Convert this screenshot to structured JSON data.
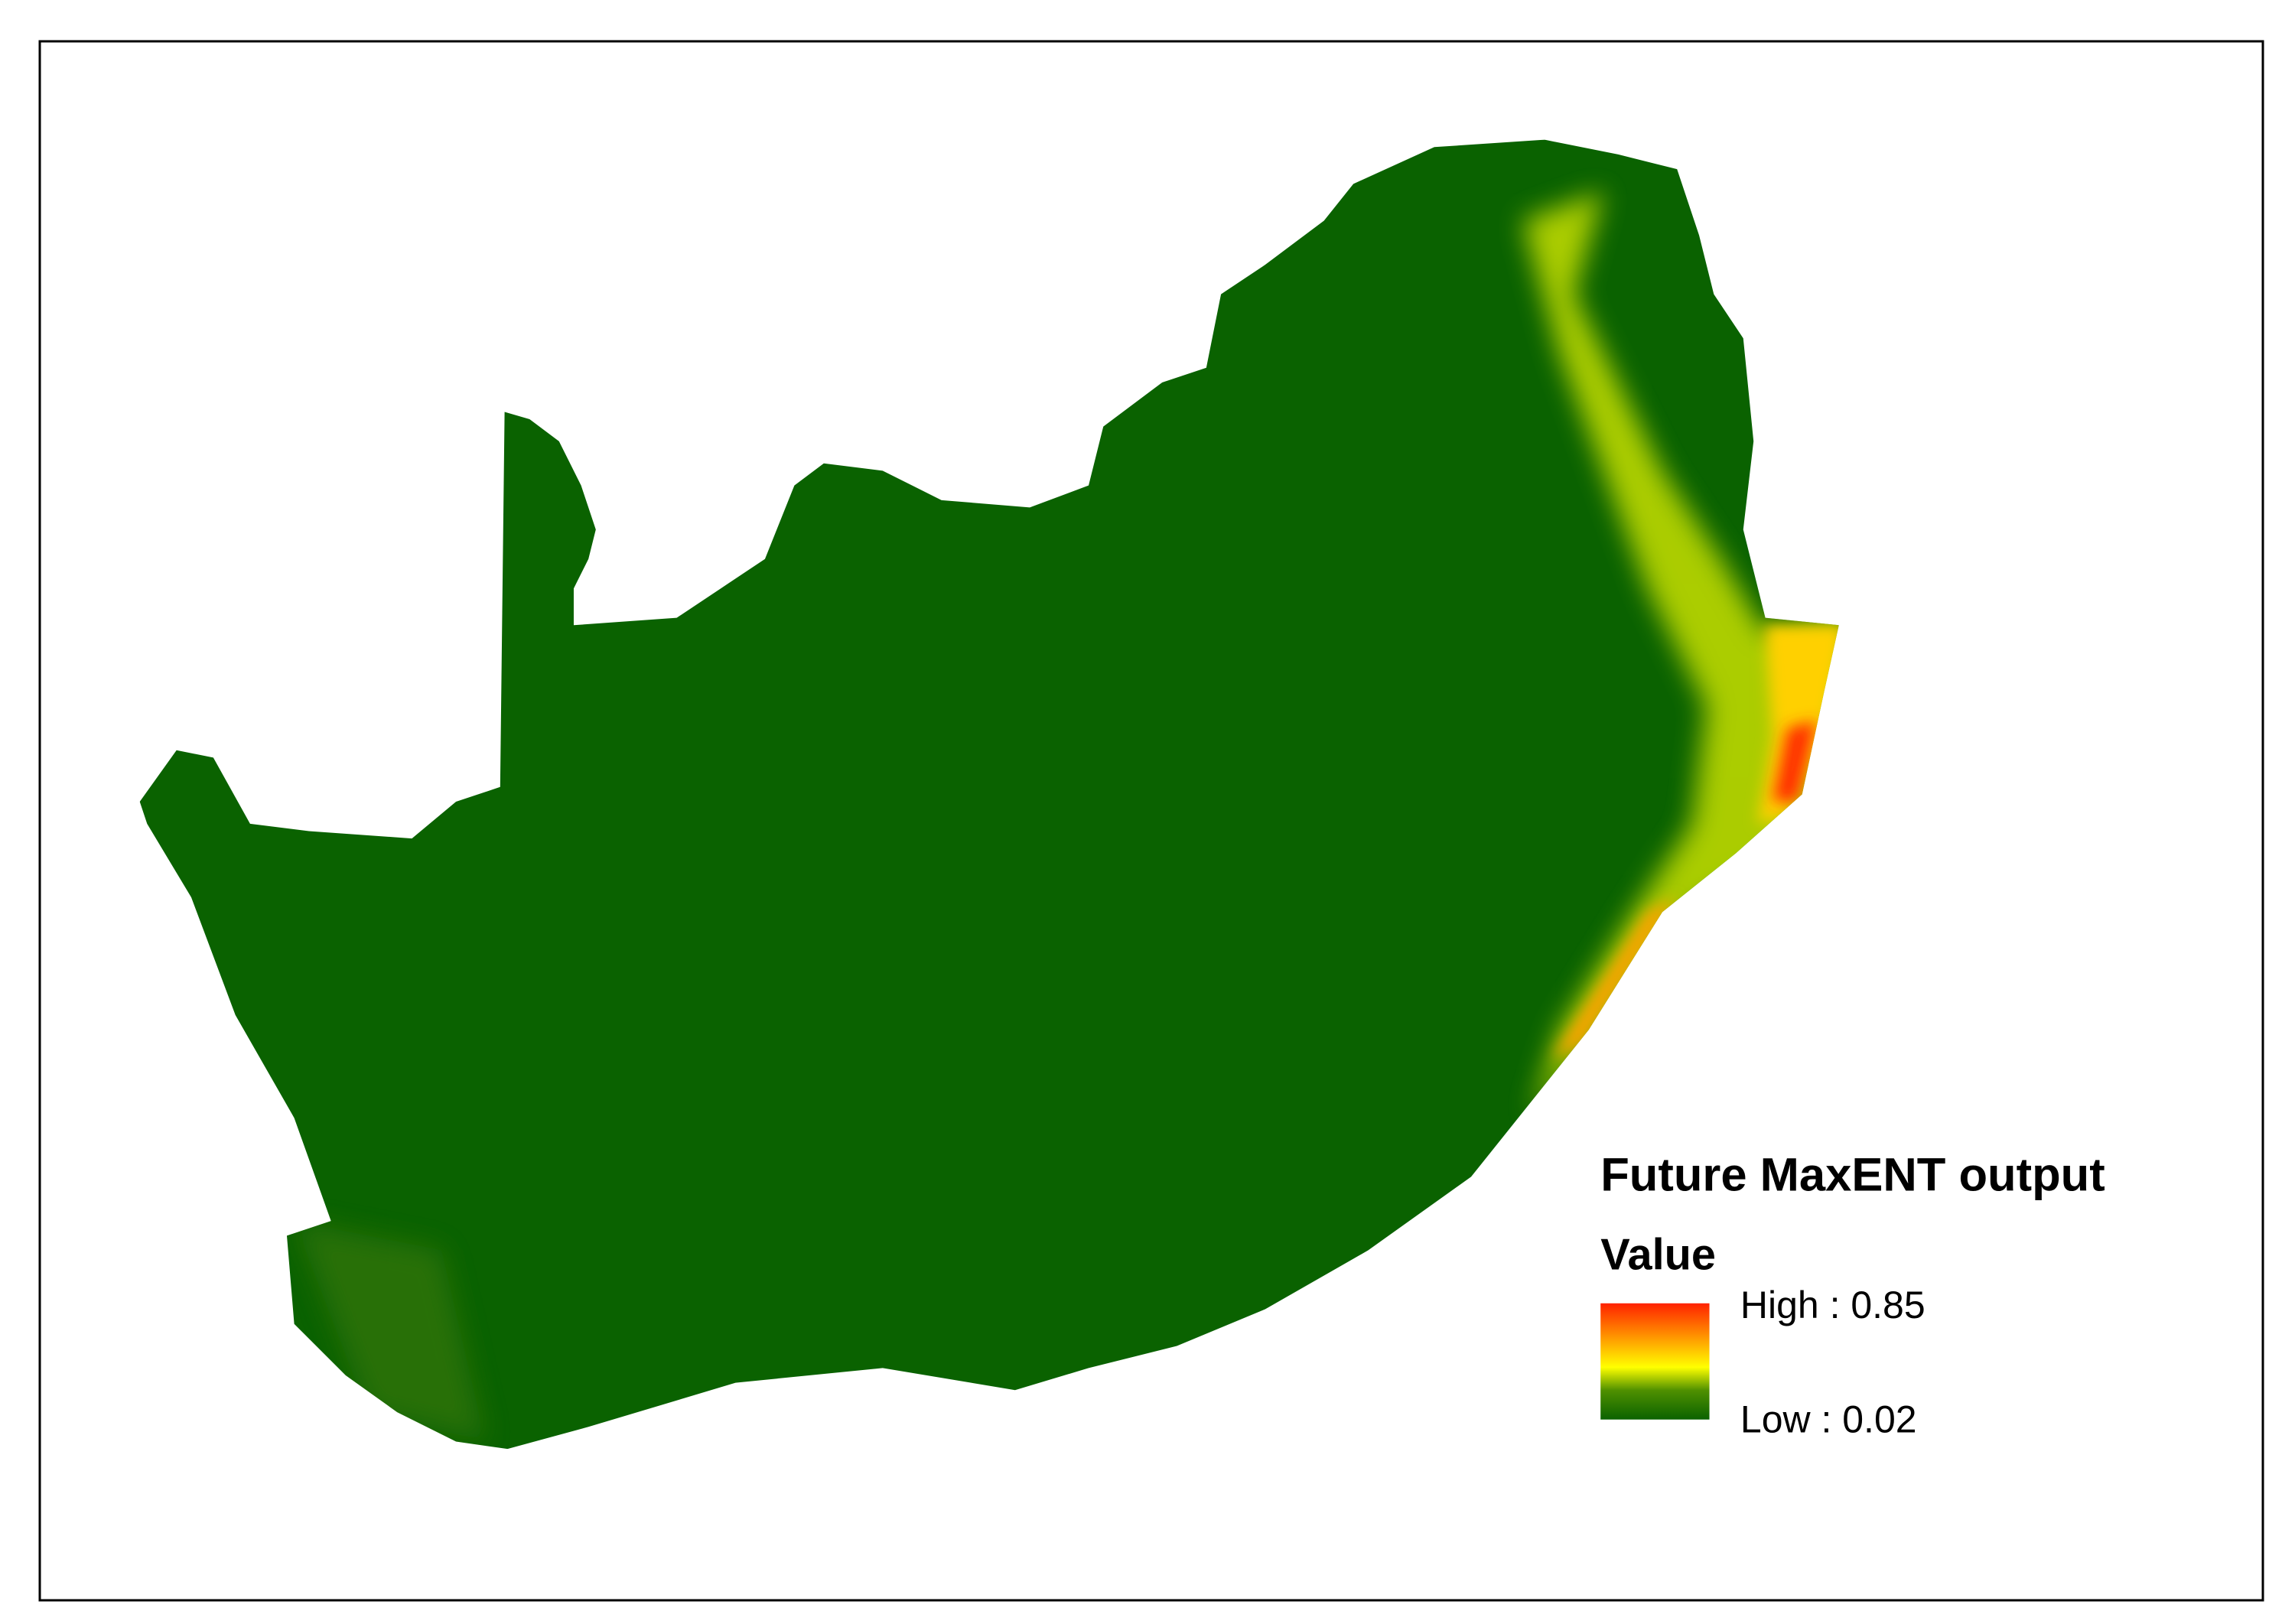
{
  "legend": {
    "title": "Future MaxENT output",
    "subtitle": "Value",
    "high": "High : 0.85",
    "low": "Low : 0.02"
  }
}
